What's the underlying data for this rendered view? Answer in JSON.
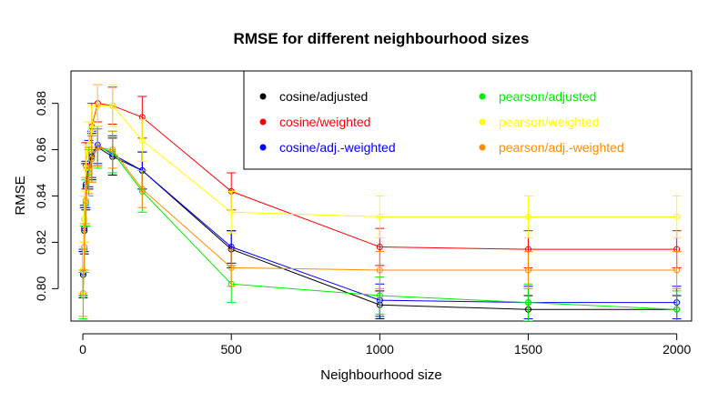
{
  "chart_data": {
    "type": "line",
    "title": "RMSE for different neighbourhood sizes",
    "xlabel": "Neighbourhood size",
    "ylabel": "RMSE",
    "xlim": [
      -40,
      2050
    ],
    "ylim": [
      0.786,
      0.894
    ],
    "xticks": [
      0,
      500,
      1000,
      1500,
      2000
    ],
    "yticks": [
      0.8,
      0.82,
      0.84,
      0.86,
      0.88
    ],
    "xtick_labels": [
      "0",
      "500",
      "1000",
      "1500",
      "2000"
    ],
    "ytick_labels": [
      "0.80",
      "0.82",
      "0.84",
      "0.86",
      "0.88"
    ],
    "grid": false,
    "legend_position": "top-right",
    "x": [
      1,
      5,
      10,
      20,
      30,
      50,
      100,
      200,
      500,
      1000,
      1500,
      2000
    ],
    "series": [
      {
        "name": "cosine/adjusted",
        "color": "#000000",
        "values": [
          0.806,
          0.825,
          0.844,
          0.853,
          0.857,
          0.861,
          0.857,
          0.851,
          0.817,
          0.793,
          0.791,
          0.791
        ],
        "error": [
          0.01,
          0.01,
          0.01,
          0.01,
          0.01,
          0.008,
          0.008,
          0.008,
          0.008,
          0.006,
          0.006,
          0.006
        ]
      },
      {
        "name": "cosine/weighted",
        "color": "#ff0000",
        "values": [
          0.808,
          0.83,
          0.853,
          0.862,
          0.87,
          0.88,
          0.879,
          0.874,
          0.842,
          0.818,
          0.817,
          0.817
        ],
        "error": [
          0.01,
          0.01,
          0.01,
          0.01,
          0.01,
          0.008,
          0.008,
          0.009,
          0.008,
          0.008,
          0.008,
          0.008
        ]
      },
      {
        "name": "cosine/adj.-weighted",
        "color": "#0000ff",
        "values": [
          0.807,
          0.826,
          0.845,
          0.854,
          0.858,
          0.862,
          0.858,
          0.851,
          0.818,
          0.795,
          0.794,
          0.794
        ],
        "error": [
          0.01,
          0.01,
          0.01,
          0.01,
          0.01,
          0.008,
          0.008,
          0.008,
          0.007,
          0.007,
          0.007,
          0.007
        ]
      },
      {
        "name": "pearson/adjusted",
        "color": "#00ee00",
        "values": [
          0.797,
          0.817,
          0.837,
          0.85,
          0.856,
          0.861,
          0.859,
          0.842,
          0.802,
          0.797,
          0.794,
          0.791
        ],
        "error": [
          0.01,
          0.01,
          0.01,
          0.01,
          0.01,
          0.009,
          0.009,
          0.009,
          0.008,
          0.008,
          0.008,
          0.008
        ]
      },
      {
        "name": "pearson/weighted",
        "color": "#ffff00",
        "values": [
          0.808,
          0.83,
          0.852,
          0.862,
          0.869,
          0.879,
          0.879,
          0.864,
          0.833,
          0.831,
          0.831,
          0.831
        ],
        "error": [
          0.01,
          0.01,
          0.01,
          0.01,
          0.01,
          0.009,
          0.009,
          0.009,
          0.009,
          0.009,
          0.009,
          0.009
        ]
      },
      {
        "name": "pearson/adj.-weighted",
        "color": "#ff8c00",
        "values": [
          0.798,
          0.818,
          0.838,
          0.851,
          0.856,
          0.861,
          0.86,
          0.843,
          0.809,
          0.808,
          0.808,
          0.808
        ],
        "error": [
          0.01,
          0.01,
          0.01,
          0.01,
          0.01,
          0.008,
          0.008,
          0.008,
          0.008,
          0.008,
          0.008,
          0.008
        ]
      }
    ]
  }
}
